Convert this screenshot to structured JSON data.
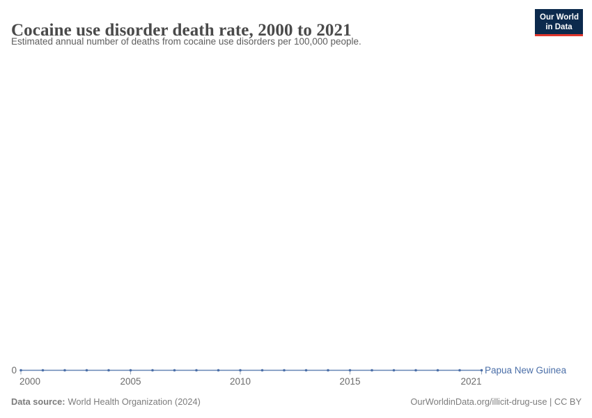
{
  "header": {
    "title": "Cocaine use disorder death rate, 2000 to 2021",
    "subtitle": "Estimated annual number of deaths from cocaine use disorders per 100,000 people.",
    "logo": {
      "line1": "Our World",
      "line2": "in Data"
    }
  },
  "chart_data": {
    "type": "line",
    "title": "Cocaine use disorder death rate, 2000 to 2021",
    "subtitle": "Estimated annual number of deaths from cocaine use disorders per 100,000 people.",
    "x": [
      2000,
      2001,
      2002,
      2003,
      2004,
      2005,
      2006,
      2007,
      2008,
      2009,
      2010,
      2011,
      2012,
      2013,
      2014,
      2015,
      2016,
      2017,
      2018,
      2019,
      2020,
      2021
    ],
    "series": [
      {
        "name": "Papua New Guinea",
        "values": [
          0,
          0,
          0,
          0,
          0,
          0,
          0,
          0,
          0,
          0,
          0,
          0,
          0,
          0,
          0,
          0,
          0,
          0,
          0,
          0,
          0,
          0
        ]
      }
    ],
    "xticks": [
      2000,
      2005,
      2010,
      2015,
      2021
    ],
    "yticks": [
      0
    ],
    "ylim": [
      0,
      0
    ],
    "xlabel": "",
    "ylabel": "",
    "grid": false,
    "legend_position": "right-of-line",
    "entity_label": "Papua New Guinea"
  },
  "footer": {
    "source_label": "Data source:",
    "source_value": "World Health Organization (2024)",
    "credit": "OurWorldinData.org/illicit-drug-use | CC BY"
  },
  "colors": {
    "series": "#4b6fa8",
    "series_line": "#6585b4",
    "tick": "#9daabc",
    "axis_text": "#6b6b6b",
    "title_text": "#4a4a4a",
    "logo_navy": "#0c2a4d",
    "logo_red": "#e0362c"
  }
}
